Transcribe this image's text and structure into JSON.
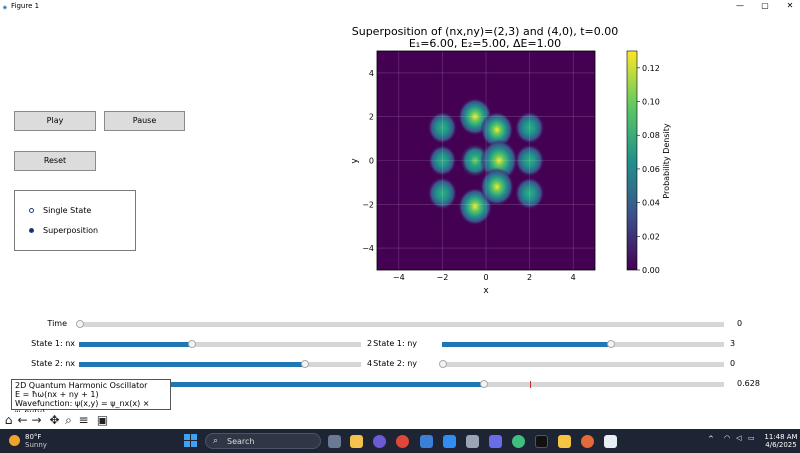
{
  "window": {
    "title": "Figure 1",
    "controls": {
      "minimize": "—",
      "maximize": "▢",
      "close": "✕"
    }
  },
  "buttons": {
    "play": "Play",
    "pause": "Pause",
    "reset": "Reset"
  },
  "mode_radio": {
    "options": [
      "Single State",
      "Superposition"
    ],
    "selected": "Superposition"
  },
  "plot": {
    "title_line1": "Superposition of (nx,ny)=(2,3) and (4,0), t=0.00",
    "title_line2": "E₁=6.00, E₂=5.00, ΔE=1.00",
    "xlabel": "x",
    "ylabel": "y",
    "xticks": [
      "−4",
      "−2",
      "0",
      "2",
      "4"
    ],
    "yticks": [
      "4",
      "2",
      "0",
      "−2",
      "−4"
    ],
    "colorbar_label": "Probability Density",
    "colorbar_ticks": [
      "0.12",
      "0.10",
      "0.08",
      "0.06",
      "0.04",
      "0.02",
      "0.00"
    ]
  },
  "chart_data": {
    "type": "heatmap",
    "title": "Superposition of (nx,ny)=(2,3) and (4,0), t=0.00",
    "subtitle": "E₁=6.00, E₂=5.00, ΔE=1.00",
    "xlabel": "x",
    "ylabel": "y",
    "xlim": [
      -5,
      5
    ],
    "ylim": [
      -5,
      5
    ],
    "colorbar": {
      "label": "Probability Density",
      "range": [
        0.0,
        0.13
      ],
      "colormap": "viridis"
    },
    "grid": true,
    "peaks": [
      {
        "x": -2.0,
        "y": 1.5,
        "value": 0.06
      },
      {
        "x": -0.5,
        "y": 2.0,
        "value": 0.1
      },
      {
        "x": 0.5,
        "y": 1.4,
        "value": 0.09
      },
      {
        "x": 2.0,
        "y": 1.5,
        "value": 0.06
      },
      {
        "x": -2.0,
        "y": 0.0,
        "value": 0.05
      },
      {
        "x": -0.5,
        "y": 0.0,
        "value": 0.07
      },
      {
        "x": 0.6,
        "y": 0.0,
        "value": 0.13
      },
      {
        "x": 2.0,
        "y": 0.0,
        "value": 0.06
      },
      {
        "x": -2.0,
        "y": -1.5,
        "value": 0.06
      },
      {
        "x": -0.5,
        "y": -2.1,
        "value": 0.1
      },
      {
        "x": 0.5,
        "y": -1.2,
        "value": 0.1
      },
      {
        "x": 2.0,
        "y": -1.5,
        "value": 0.06
      }
    ]
  },
  "sliders": [
    {
      "label": "Time",
      "value": "0",
      "fraction": 0.0
    },
    {
      "label": "State 1: nx",
      "value": "2",
      "fraction": 0.4
    },
    {
      "label": "State 1: ny",
      "value": "3",
      "fraction": 0.6
    },
    {
      "label": "State 2: nx",
      "value": "4",
      "fraction": 0.8
    },
    {
      "label": "State 2: ny",
      "value": "0",
      "fraction": 0.0
    },
    {
      "label": "",
      "value": "0.628",
      "fraction": 0.628
    }
  ],
  "info_box": {
    "line1": "2D Quantum Harmonic Oscillator",
    "line2": "E = ħω(nx + ny + 1)",
    "line3": "Wavefunction: ψ(x,y) = ψ_nx(x) × ψ_ny(y)"
  },
  "toolbar": [
    "home-icon",
    "back-icon",
    "forward-icon",
    "pan-icon",
    "zoom-icon",
    "configure-icon",
    "save-icon"
  ],
  "taskbar": {
    "weather_temp": "80°F",
    "weather_desc": "Sunny",
    "search_placeholder": "Search",
    "time": "11:48 AM",
    "date": "4/6/2025"
  },
  "colors": {
    "slider_fill": "#1f77b4",
    "taskbar": "#1d2433"
  }
}
